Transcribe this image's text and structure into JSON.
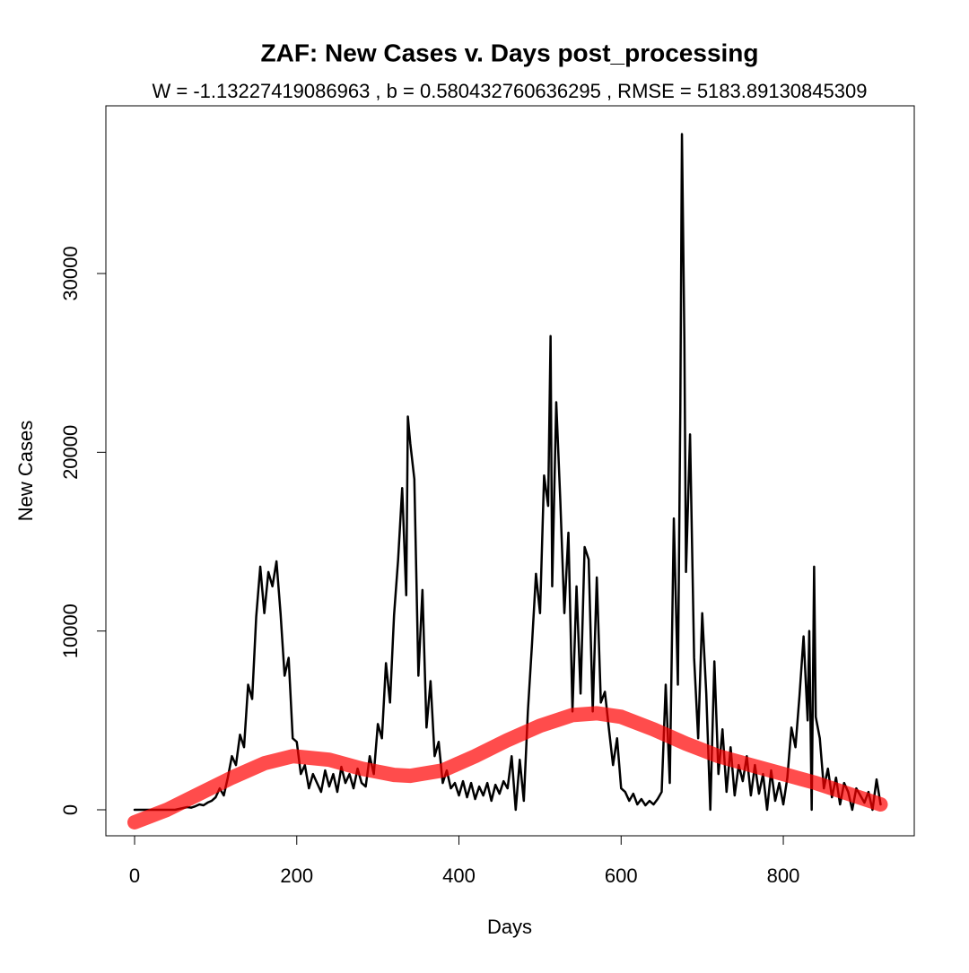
{
  "chart_data": {
    "type": "line",
    "title": "ZAF: New Cases v. Days post_processing",
    "subtitle": "W = -1.13227419086963 , b = 0.580432760636295 , RMSE = 5183.89130845309",
    "x_label": "Days",
    "y_label": "New Cases",
    "xlim": [
      -35.4,
      961.5
    ],
    "ylim": [
      -1455,
      39382
    ],
    "xticks": [
      0,
      200,
      400,
      600,
      800
    ],
    "yticks": [
      0,
      10000,
      20000,
      30000
    ],
    "series": [
      {
        "color": "#000000",
        "x": [
          0,
          5,
          10,
          15,
          20,
          25,
          30,
          35,
          40,
          45,
          50,
          55,
          60,
          65,
          70,
          75,
          80,
          85,
          90,
          95,
          100,
          105,
          110,
          115,
          120,
          125,
          130,
          135,
          140,
          145,
          150,
          155,
          160,
          165,
          170,
          175,
          180,
          185,
          190,
          195,
          200,
          205,
          210,
          215,
          220,
          225,
          230,
          235,
          240,
          245,
          250,
          255,
          260,
          265,
          270,
          275,
          280,
          285,
          290,
          295,
          300,
          305,
          310,
          315,
          320,
          325,
          330,
          335,
          337,
          340,
          345,
          350,
          355,
          360,
          365,
          370,
          375,
          380,
          385,
          390,
          395,
          400,
          405,
          410,
          415,
          420,
          425,
          430,
          435,
          440,
          445,
          450,
          455,
          460,
          465,
          470,
          475,
          480,
          485,
          490,
          495,
          500,
          505,
          510,
          513,
          515,
          520,
          525,
          530,
          535,
          540,
          545,
          550,
          555,
          560,
          565,
          570,
          575,
          580,
          585,
          590,
          595,
          600,
          605,
          610,
          615,
          620,
          625,
          630,
          635,
          640,
          645,
          650,
          655,
          660,
          665,
          670,
          673,
          675,
          678,
          680,
          685,
          690,
          695,
          700,
          705,
          710,
          715,
          720,
          725,
          730,
          735,
          740,
          745,
          750,
          755,
          760,
          765,
          770,
          775,
          780,
          785,
          790,
          795,
          800,
          805,
          810,
          815,
          820,
          825,
          830,
          832,
          835,
          838,
          840,
          845,
          850,
          855,
          860,
          865,
          870,
          875,
          880,
          885,
          890,
          895,
          900,
          905,
          910,
          915,
          920
        ],
        "values": [
          0,
          0,
          0,
          0,
          0,
          0,
          0,
          0,
          0,
          0,
          0,
          50,
          100,
          150,
          120,
          200,
          300,
          250,
          400,
          500,
          700,
          1200,
          800,
          1800,
          3000,
          2500,
          4200,
          3500,
          7000,
          6200,
          10800,
          13600,
          11000,
          13300,
          12500,
          13900,
          11000,
          7500,
          8500,
          4000,
          3800,
          2000,
          2500,
          1200,
          2000,
          1500,
          1000,
          2200,
          1300,
          2000,
          1000,
          2400,
          1500,
          2000,
          1200,
          2300,
          1500,
          1300,
          3000,
          2000,
          4800,
          4000,
          8200,
          6000,
          10900,
          14000,
          18000,
          12000,
          22000,
          20500,
          18500,
          7500,
          12300,
          4600,
          7200,
          3000,
          3800,
          1500,
          2200,
          1200,
          1500,
          800,
          1600,
          700,
          1500,
          600,
          1300,
          800,
          1500,
          500,
          1400,
          900,
          1600,
          1200,
          3000,
          0,
          2800,
          500,
          5500,
          9200,
          13200,
          11000,
          18700,
          17000,
          26500,
          12500,
          22800,
          17300,
          11000,
          15500,
          5500,
          12500,
          6500,
          14700,
          14000,
          5500,
          13000,
          6000,
          6600,
          4500,
          2500,
          4000,
          1200,
          1000,
          500,
          900,
          300,
          600,
          250,
          500,
          300,
          600,
          1000,
          7000,
          1500,
          16300,
          7000,
          22400,
          37800,
          26300,
          13300,
          21000,
          8500,
          4000,
          11000,
          6500,
          0,
          8300,
          2000,
          4500,
          1000,
          3500,
          800,
          2500,
          1600,
          3000,
          800,
          2500,
          900,
          2000,
          0,
          2200,
          500,
          1500,
          300,
          1800,
          4600,
          3500,
          6400,
          9700,
          5000,
          10000,
          0,
          13600,
          5200,
          4000,
          1200,
          2300,
          700,
          1800,
          300,
          1500,
          1000,
          0,
          1200,
          800,
          400,
          1000,
          0,
          1700,
          300
        ]
      },
      {
        "color": "#ff0000",
        "x": [
          0,
          40,
          80,
          120,
          160,
          195,
          240,
          280,
          320,
          340,
          380,
          420,
          460,
          500,
          540,
          570,
          600,
          640,
          680,
          720,
          760,
          800,
          840,
          880,
          920
        ],
        "values": [
          -700,
          0,
          900,
          1800,
          2600,
          3000,
          2800,
          2300,
          1950,
          1900,
          2200,
          3000,
          3900,
          4700,
          5300,
          5400,
          5200,
          4500,
          3700,
          3000,
          2500,
          2000,
          1500,
          900,
          300
        ]
      }
    ]
  }
}
